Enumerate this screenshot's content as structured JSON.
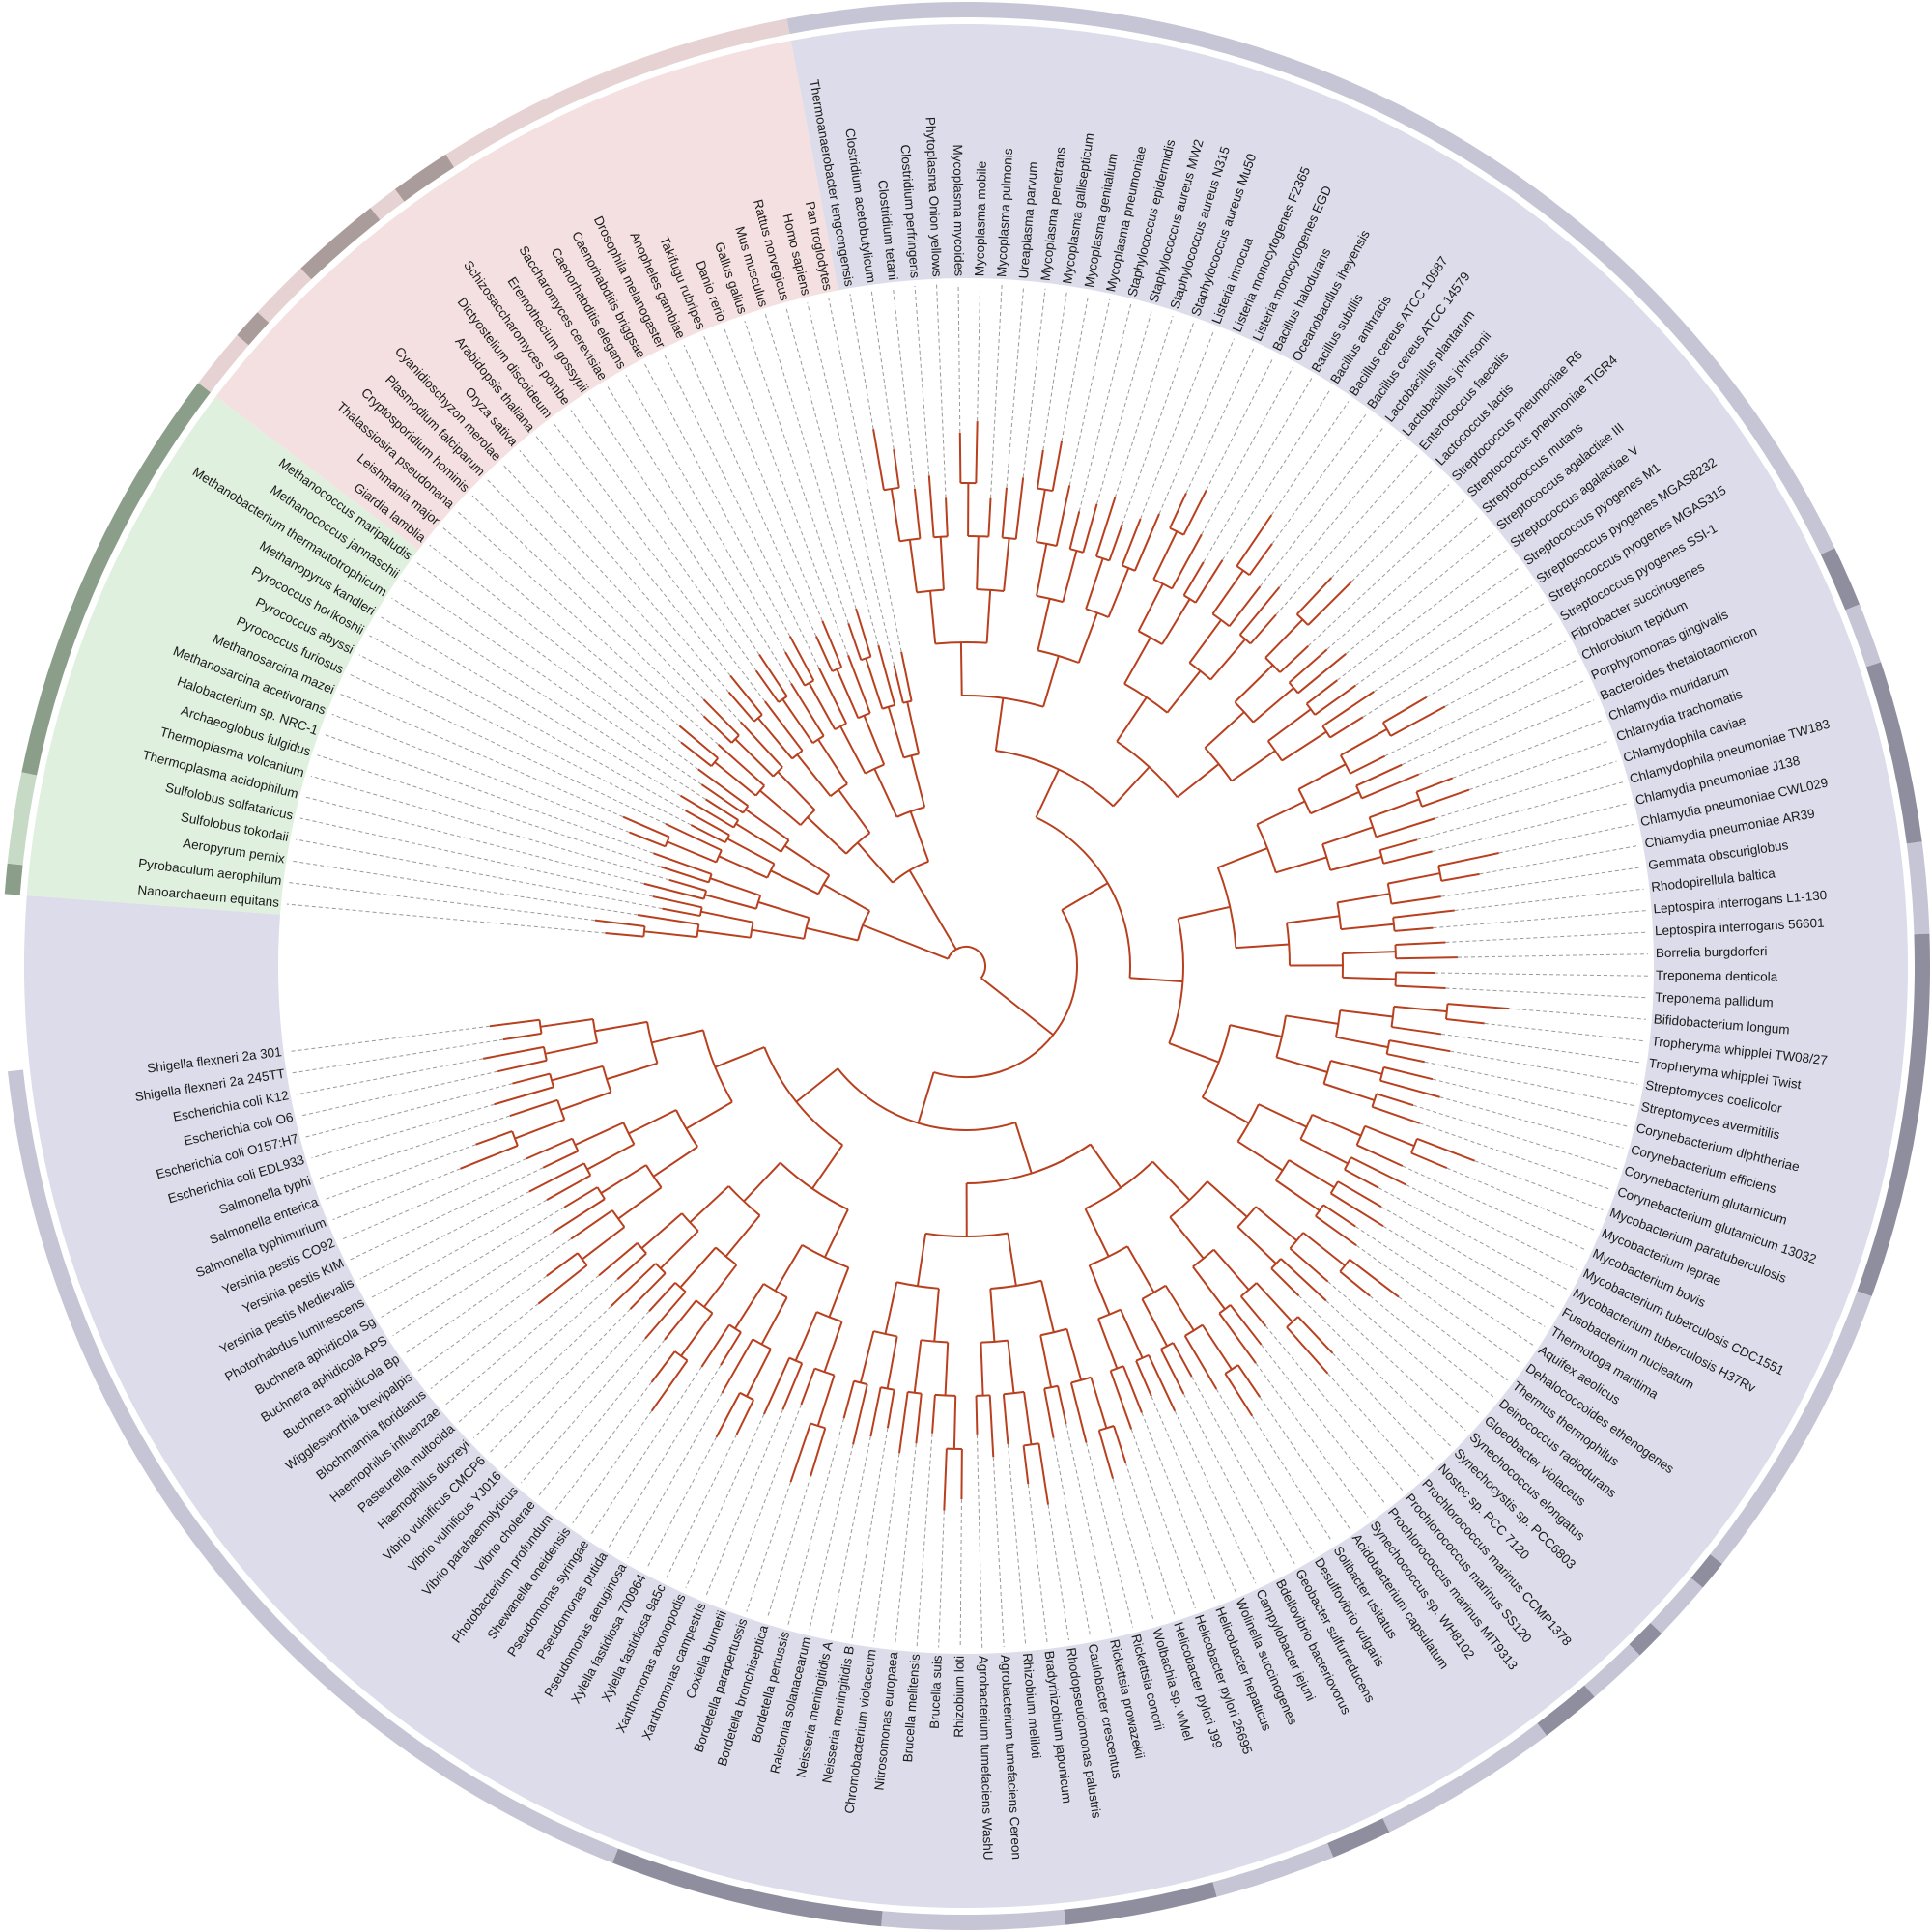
{
  "leaves": [
    "Nanoarchaeum equitans",
    "Pyrobaculum aerophilum",
    "Aeropyrum pernix",
    "Sulfolobus tokodaii",
    "Sulfolobus solfataricus",
    "Thermoplasma acidophilum",
    "Thermoplasma volcanium",
    "Archaeoglobus fulgidus",
    "Halobacterium sp. NRC-1",
    "Methanosarcina acetivorans",
    "Methanosarcina mazei",
    "Pyrococcus furiosus",
    "Pyrococcus abyssi",
    "Pyrococcus horikoshii",
    "Methanopyrus kandleri",
    "Methanobacterium thermautotrophicum",
    "Methanococcus jannaschii",
    "Methanococcus maripaludis",
    "Giardia lamblia",
    "Leishmania major",
    "Thalassiosira pseudonana",
    "Cryptosporidium hominis",
    "Plasmodium falciparum",
    "Cyanidioschyzon merolae",
    "Oryza sativa",
    "Arabidopsis thaliana",
    "Dictyostelium discoideum",
    "Schizosaccharomyces pombe",
    "Eremothecium gossypii",
    "Saccharomyces cerevisiae",
    "Caenorhabditis elegans",
    "Caenorhabditis briggsae",
    "Drosophila melanogaster",
    "Anopheles gambiae",
    "Takifugu rubripes",
    "Danio rerio",
    "Gallus gallus",
    "Mus musculus",
    "Rattus norvegicus",
    "Homo sapiens",
    "Pan troglodytes",
    "Thermoanaerobacter tengcongensis",
    "Clostridium acetobutylicum",
    "Clostridium tetani",
    "Clostridium perfringens",
    "Phytoplasma Onion yellows",
    "Mycoplasma mycoides",
    "Mycoplasma mobile",
    "Mycoplasma pulmonis",
    "Ureaplasma parvum",
    "Mycoplasma penetrans",
    "Mycoplasma gallisepticum",
    "Mycoplasma genitalium",
    "Mycoplasma pneumoniae",
    "Staphylococcus epidermidis",
    "Staphylococcus aureus MW2",
    "Staphylococcus aureus N315",
    "Staphylococcus aureus Mu50",
    "Listeria innocua",
    "Listeria monocytogenes F2365",
    "Listeria monocytogenes EGD",
    "Bacillus halodurans",
    "Oceanobacillus iheyensis",
    "Bacillus subtilis",
    "Bacillus anthracis",
    "Bacillus cereus ATCC 10987",
    "Bacillus cereus ATCC 14579",
    "Lactobacillus plantarum",
    "Lactobacillus johnsonii",
    "Enterococcus faecalis",
    "Lactococcus lactis",
    "Streptococcus pneumoniae R6",
    "Streptococcus pneumoniae TIGR4",
    "Streptococcus mutans",
    "Streptococcus agalactiae III",
    "Streptococcus agalactiae V",
    "Streptococcus pyogenes M1",
    "Streptococcus pyogenes MGAS8232",
    "Streptococcus pyogenes MGAS315",
    "Streptococcus pyogenes SSI-1",
    "Fibrobacter succinogenes",
    "Chlorobium tepidum",
    "Porphyromonas gingivalis",
    "Bacteroides thetaiotaomicron",
    "Chlamydia muridarum",
    "Chlamydia trachomatis",
    "Chlamydophila caviae",
    "Chlamydophila pneumoniae TW183",
    "Chlamydia pneumoniae J138",
    "Chlamydia pneumoniae CWL029",
    "Chlamydia pneumoniae AR39",
    "Gemmata obscuriglobus",
    "Rhodopirellula baltica",
    "Leptospira interrogans L1-130",
    "Leptospira interrogans 56601",
    "Borrelia burgdorferi",
    "Treponema denticola",
    "Treponema pallidum",
    "Bifidobacterium longum",
    "Tropheryma whipplei TW08/27",
    "Tropheryma whipplei Twist",
    "Streptomyces coelicolor",
    "Streptomyces avermitilis",
    "Corynebacterium diphtheriae",
    "Corynebacterium efficiens",
    "Corynebacterium glutamicum",
    "Corynebacterium glutamicum 13032",
    "Mycobacterium paratuberculosis",
    "Mycobacterium leprae",
    "Mycobacterium bovis",
    "Mycobacterium tuberculosis CDC1551",
    "Mycobacterium tuberculosis H37Rv",
    "Fusobacterium nucleatum",
    "Thermotoga maritima",
    "Aquifex aeolicus",
    "Dehalococcoides ethenogenes",
    "Thermus thermophilus",
    "Deinococcus radiodurans",
    "Gloeobacter violaceus",
    "Synechococcus elongatus",
    "Synechocystis sp. PCC6803",
    "Nostoc sp. PCC 7120",
    "Prochlorococcus marinus CCMP1378",
    "Prochlorococcus marinus SS120",
    "Prochlorococcus marinus MIT9313",
    "Synechococcus sp. WH8102",
    "Acidobacterium capsulatum",
    "Solibacter usitatus",
    "Desulfovibrio vulgaris",
    "Geobacter sulfurreducens",
    "Bdellovibrio bacteriovorus",
    "Campylobacter jejuni",
    "Wolinella succinogenes",
    "Helicobacter hepaticus",
    "Helicobacter pylori 26695",
    "Helicobacter pylori J99",
    "Wolbachia sp. wMel",
    "Rickettsia conorii",
    "Rickettsia prowazekii",
    "Caulobacter crescentus",
    "Rhodopseudomonas palustris",
    "Bradyrhizobium japonicum",
    "Rhizobium meliloti",
    "Agrobacterium tumefaciens Cereon",
    "Agrobacterium tumefaciens WashU",
    "Rhizobium loti",
    "Brucella suis",
    "Brucella melitensis",
    "Nitrosomonas europaea",
    "Chromobacterium violaceum",
    "Neisseria meningitidis B",
    "Neisseria meningitidis A",
    "Ralstonia solanacearum",
    "Bordetella pertussis",
    "Bordetella bronchiseptica",
    "Bordetella parapertussis",
    "Coxiella burnetii",
    "Xanthomonas campestris",
    "Xanthomonas axonopodis",
    "Xylella fastidiosa 9a5c",
    "Xylella fastidiosa 700964",
    "Pseudomonas aeruginosa",
    "Pseudomonas putida",
    "Pseudomonas syringae",
    "Shewanella oneidensis",
    "Photobacterium profundum",
    "Vibrio cholerae",
    "Vibrio parahaemolyticus",
    "Vibrio vulnificus YJ016",
    "Vibrio vulnificus CMCP6",
    "Haemophilus ducreyi",
    "Pasteurella multocida",
    "Haemophilus influenzae",
    "Blochmannia floridanus",
    "Wigglesworthia brevipalpis",
    "Buchnera aphidicola Bp",
    "Buchnera aphidicola APS",
    "Buchnera aphidicola Sg",
    "Photorhabdus luminescens",
    "Yersinia pestis Medievalis",
    "Yersinia pestis KIM",
    "Yersinia pestis CO92",
    "Salmonella typhimurium",
    "Salmonella enterica",
    "Salmonella typhi",
    "Escherichia coli EDL933",
    "Escherichia coli O157:H7",
    "Escherichia coli O6",
    "Escherichia coli K12",
    "Shigella flexneri 2a 245TT",
    "Shigella flexneri 2a 301"
  ]
}
